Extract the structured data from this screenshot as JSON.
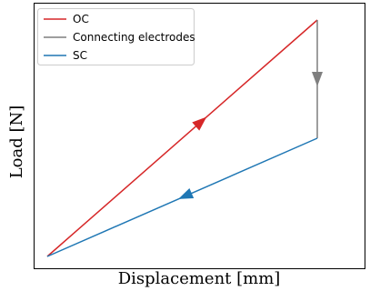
{
  "chart_data": {
    "type": "line",
    "title": "",
    "xlabel": "Displacement [mm]",
    "ylabel": "Load [N]",
    "xlim": [
      0,
      1.03
    ],
    "ylim": [
      0,
      1.03
    ],
    "ticks_visible": false,
    "grid": false,
    "legend": {
      "placement": "top-left"
    },
    "series": [
      {
        "name": "OC",
        "color": "#d62728",
        "x": [
          0,
          1
        ],
        "y": [
          0,
          1
        ],
        "arrow": {
          "at": 0.57,
          "direction": "forward"
        }
      },
      {
        "name": "Connecting electrodes",
        "color": "#7f7f7f",
        "x": [
          1,
          1
        ],
        "y": [
          1,
          0.5
        ],
        "arrow": {
          "at": 0.5,
          "direction": "forward"
        }
      },
      {
        "name": "SC",
        "color": "#1f77b4",
        "x": [
          1,
          0
        ],
        "y": [
          0.5,
          0
        ],
        "arrow": {
          "at": 0.49,
          "direction": "forward"
        }
      }
    ]
  }
}
